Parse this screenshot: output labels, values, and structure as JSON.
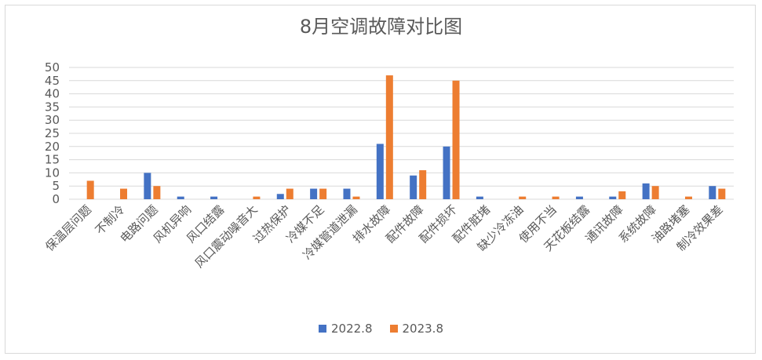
{
  "colors": {
    "series_2022": "#4472c4",
    "series_2023": "#ed7d31",
    "grid": "#d9d9d9",
    "text": "#595959"
  },
  "chart_data": {
    "type": "bar",
    "title": "8月空调故障对比图",
    "xlabel": "",
    "ylabel": "",
    "ylim": [
      0,
      50
    ],
    "yticks": [
      0,
      5,
      10,
      15,
      20,
      25,
      30,
      35,
      40,
      45,
      50
    ],
    "grid": true,
    "legend_position": "bottom",
    "categories": [
      "保温层问题",
      "不制冷",
      "电路问题",
      "风机异响",
      "风口结露",
      "风口震动噪音大",
      "过热保护",
      "冷媒不足",
      "冷媒管道泄漏",
      "排水故障",
      "配件故障",
      "配件损坏",
      "配件脏堵",
      "缺少冷冻油",
      "使用不当",
      "天花板结露",
      "通讯故障",
      "系统故障",
      "油路堵塞",
      "制冷效果差"
    ],
    "series": [
      {
        "name": "2022.8",
        "values": [
          0,
          0,
          10,
          1,
          1,
          0,
          2,
          4,
          4,
          21,
          9,
          20,
          1,
          0,
          0,
          1,
          1,
          6,
          0,
          5
        ]
      },
      {
        "name": "2023.8",
        "values": [
          7,
          4,
          5,
          0,
          0,
          1,
          4,
          4,
          1,
          47,
          11,
          45,
          0,
          1,
          1,
          0,
          3,
          5,
          1,
          4
        ]
      }
    ]
  }
}
